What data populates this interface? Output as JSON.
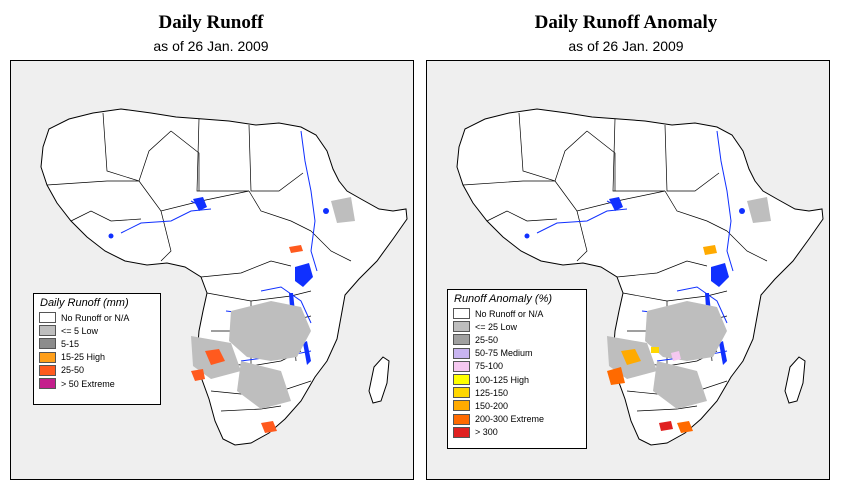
{
  "left": {
    "title": "Daily Runoff",
    "subtitle": "as of  26 Jan. 2009",
    "legend": {
      "title": "Daily Runoff (mm)",
      "items": [
        {
          "label": "No Runoff or N/A",
          "color": "#ffffff"
        },
        {
          "label": "<= 5  Low",
          "color": "#bebebe"
        },
        {
          "label": "5-15",
          "color": "#8c8c8c"
        },
        {
          "label": "15-25 High",
          "color": "#ff9f1a"
        },
        {
          "label": "25-50",
          "color": "#ff5a1e"
        },
        {
          "label": "> 50  Extreme",
          "color": "#c41e8c"
        }
      ]
    }
  },
  "right": {
    "title": "Daily Runoff Anomaly",
    "subtitle": "as of  26 Jan. 2009",
    "legend": {
      "title": "Runoff Anomaly (%)",
      "items": [
        {
          "label": "No Runoff or N/A",
          "color": "#ffffff"
        },
        {
          "label": "<= 25     Low",
          "color": "#bebebe"
        },
        {
          "label": "25-50",
          "color": "#a0a0a0"
        },
        {
          "label": "50-75   Medium",
          "color": "#c8b4f0"
        },
        {
          "label": "75-100",
          "color": "#f5c8f0"
        },
        {
          "label": "100-125  High",
          "color": "#ffff00"
        },
        {
          "label": "125-150",
          "color": "#ffd700"
        },
        {
          "label": "150-200",
          "color": "#ffaa00"
        },
        {
          "label": "200-300  Extreme",
          "color": "#ff6a00"
        },
        {
          "label": "> 300",
          "color": "#e02020"
        }
      ]
    }
  },
  "colors": {
    "water": "#1030ff",
    "background": "#efefef",
    "land": "#ffffff",
    "border": "#000000"
  }
}
